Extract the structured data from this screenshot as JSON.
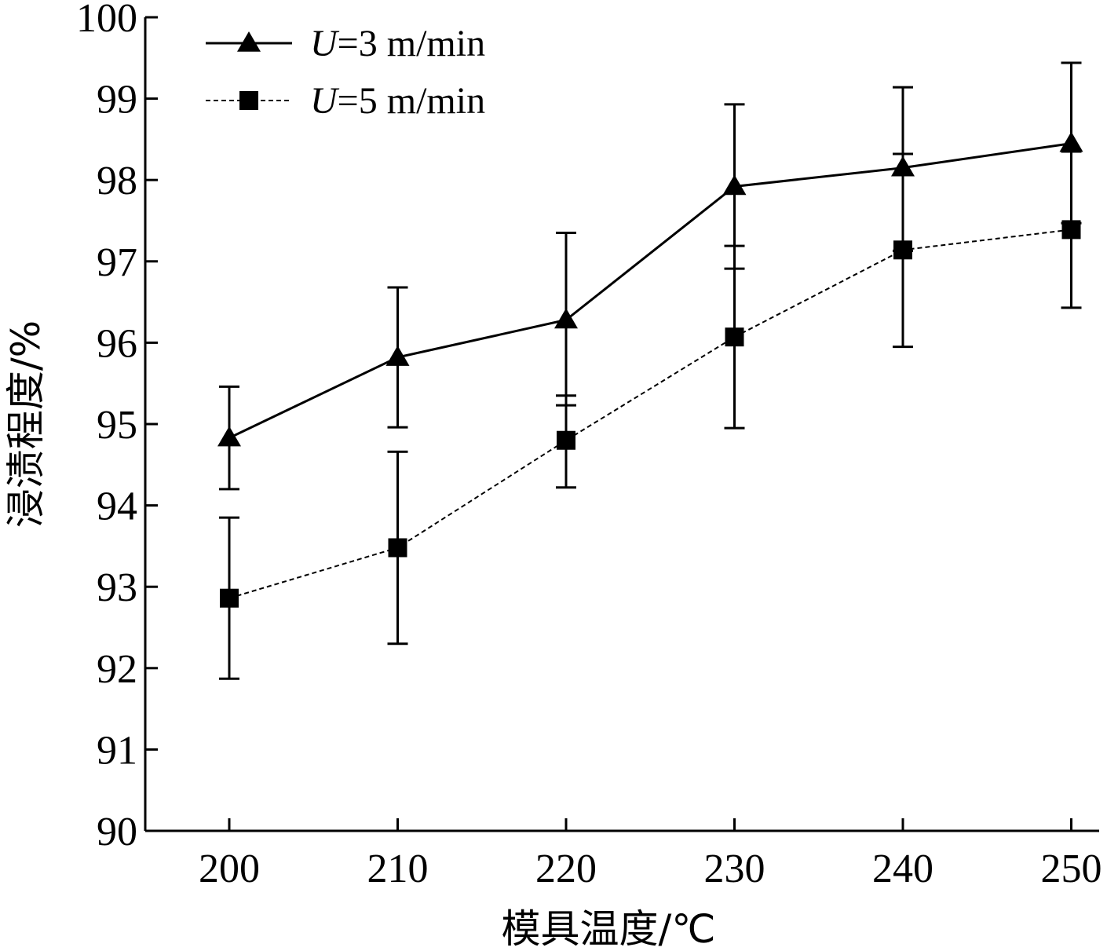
{
  "chart_data": {
    "type": "line",
    "xlabel": "模具温度/℃",
    "ylabel": "浸渍程度/%",
    "x": [
      200,
      210,
      220,
      230,
      240,
      250
    ],
    "xlim": [
      195,
      250
    ],
    "ylim": [
      90,
      100
    ],
    "yticks": [
      90,
      91,
      92,
      93,
      94,
      95,
      96,
      97,
      98,
      99,
      100
    ],
    "grid": false,
    "legend_position": "top-left",
    "series": [
      {
        "name_var": "U",
        "name_rest": "=3 m/min",
        "marker": "triangle",
        "line_style": "solid",
        "color": "#000000",
        "values": [
          94.83,
          95.82,
          96.28,
          97.92,
          98.15,
          98.45
        ],
        "err_low": [
          94.2,
          94.96,
          95.23,
          96.91,
          97.13,
          97.47
        ],
        "err_high": [
          95.46,
          96.68,
          97.35,
          98.93,
          99.14,
          99.44
        ]
      },
      {
        "name_var": "U",
        "name_rest": "=5 m/min",
        "marker": "square",
        "line_style": "dashed",
        "color": "#000000",
        "values": [
          92.86,
          93.48,
          94.8,
          96.07,
          97.14,
          97.39
        ],
        "err_low": [
          91.87,
          92.3,
          94.22,
          94.95,
          95.95,
          96.43
        ],
        "err_high": [
          93.85,
          94.66,
          95.35,
          97.19,
          98.32,
          98.35
        ]
      }
    ]
  }
}
